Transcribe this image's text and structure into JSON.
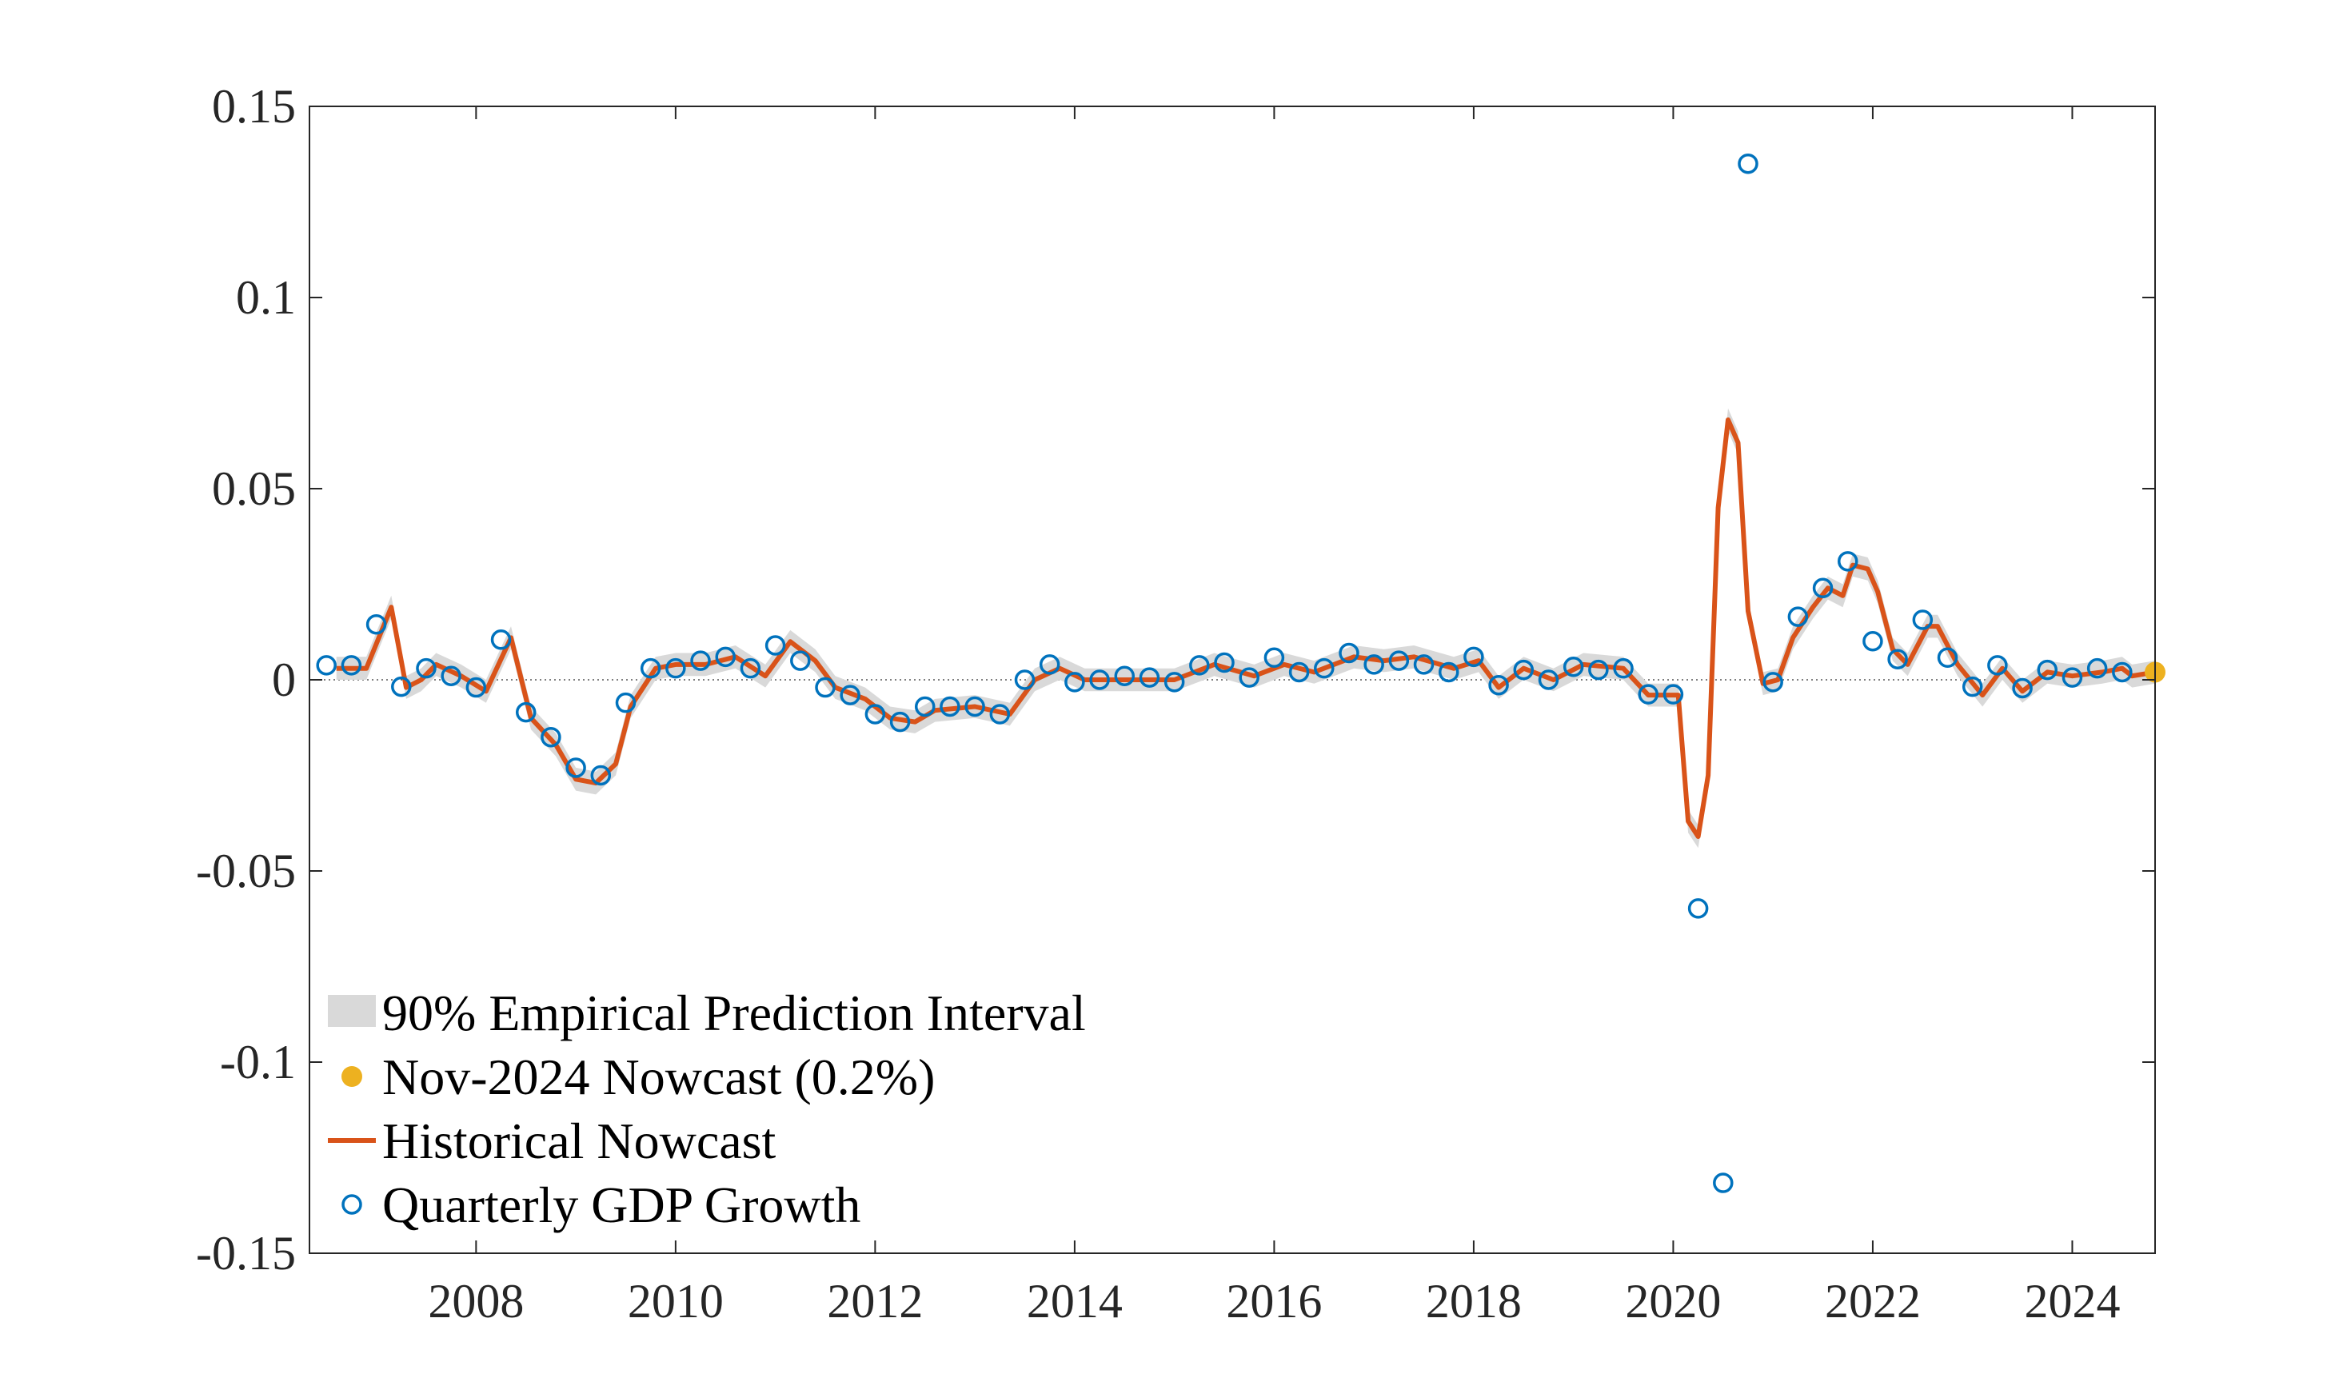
{
  "chart_data": {
    "type": "line",
    "xlim": [
      2006.33,
      2024.83
    ],
    "ylim": [
      -0.15,
      0.15
    ],
    "xticks": [
      2008,
      2010,
      2012,
      2014,
      2016,
      2018,
      2020,
      2022,
      2024
    ],
    "yticks": [
      -0.15,
      -0.1,
      -0.05,
      0,
      0.05,
      0.1,
      0.15
    ],
    "legend": "lower left",
    "series": [
      {
        "name": "90% Empirical Prediction Interval",
        "kind": "band",
        "color": "#d9d9d9",
        "x": [
          2006.6,
          2006.9,
          2007.15,
          2007.3,
          2007.45,
          2007.6,
          2007.85,
          2008.1,
          2008.35,
          2008.55,
          2008.8,
          2009.0,
          2009.2,
          2009.4,
          2009.55,
          2009.8,
          2010.0,
          2010.3,
          2010.6,
          2010.9,
          2011.15,
          2011.4,
          2011.6,
          2011.9,
          2012.15,
          2012.4,
          2012.6,
          2013.0,
          2013.35,
          2013.6,
          2013.85,
          2014.1,
          2014.5,
          2015.0,
          2015.4,
          2015.8,
          2016.1,
          2016.4,
          2016.8,
          2017.1,
          2017.4,
          2017.8,
          2018.05,
          2018.25,
          2018.5,
          2018.8,
          2019.1,
          2019.5,
          2019.75,
          2020.05,
          2020.15,
          2020.25,
          2020.35,
          2020.45,
          2020.55,
          2020.65,
          2020.75,
          2020.9,
          2021.05,
          2021.2,
          2021.4,
          2021.55,
          2021.7,
          2021.8,
          2021.95,
          2022.05,
          2022.2,
          2022.35,
          2022.55,
          2022.65,
          2022.85,
          2023.1,
          2023.3,
          2023.5,
          2023.75,
          2024.0,
          2024.3,
          2024.5,
          2024.6,
          2024.83
        ],
        "upper": [
          0.006,
          0.006,
          0.022,
          0.001,
          0.003,
          0.007,
          0.004,
          0,
          0.014,
          -0.007,
          -0.014,
          -0.023,
          -0.024,
          -0.019,
          -0.004,
          0.006,
          0.007,
          0.007,
          0.009,
          0.004,
          0.013,
          0.008,
          0.001,
          -0.002,
          -0.007,
          -0.008,
          -0.005,
          -0.004,
          -0.006,
          0.003,
          0.006,
          0.003,
          0.003,
          0.003,
          0.007,
          0.004,
          0.007,
          0.005,
          0.009,
          0.008,
          0.009,
          0.006,
          0.008,
          0.001,
          0.006,
          0.003,
          0.007,
          0.006,
          -0.001,
          -0.001,
          -0.034,
          -0.038,
          -0.022,
          0.048,
          0.071,
          0.065,
          0.021,
          0.002,
          0.003,
          0.014,
          0.022,
          0.027,
          0.025,
          0.033,
          0.032,
          0.026,
          0.011,
          0.007,
          0.017,
          0.017,
          0.007,
          -0.001,
          0.006,
          0,
          0.005,
          0.004,
          0.005,
          0.006,
          0.004,
          0.005
        ],
        "lower": [
          0,
          0,
          0.016,
          -0.005,
          -0.003,
          0.001,
          -0.002,
          -0.006,
          0.008,
          -0.013,
          -0.02,
          -0.029,
          -0.03,
          -0.025,
          -0.01,
          0,
          0.001,
          0.001,
          0.003,
          -0.002,
          0.007,
          0.002,
          -0.005,
          -0.008,
          -0.013,
          -0.014,
          -0.011,
          -0.01,
          -0.012,
          -0.003,
          0,
          -0.003,
          -0.003,
          -0.003,
          0.001,
          -0.002,
          0.001,
          -0.001,
          0.003,
          0.002,
          0.003,
          0,
          0.002,
          -0.005,
          0,
          -0.003,
          0.001,
          0,
          -0.007,
          -0.007,
          -0.04,
          -0.044,
          -0.028,
          0.042,
          0.065,
          0.059,
          0.015,
          -0.004,
          -0.003,
          0.008,
          0.016,
          0.021,
          0.019,
          0.027,
          0.026,
          0.02,
          0.005,
          0.001,
          0.011,
          0.011,
          0.001,
          -0.007,
          0,
          -0.006,
          -0.001,
          -0.002,
          -0.001,
          0,
          -0.002,
          -0.001
        ]
      },
      {
        "name": "Nov-2024 Nowcast (0.2%)",
        "kind": "point",
        "color": "#EDB120",
        "x": [
          2024.83
        ],
        "values": [
          0.002
        ]
      },
      {
        "name": "Historical Nowcast",
        "kind": "line",
        "color": "#D95319",
        "x": [
          2006.6,
          2006.9,
          2007.15,
          2007.3,
          2007.45,
          2007.6,
          2007.85,
          2008.1,
          2008.35,
          2008.55,
          2008.8,
          2009.0,
          2009.2,
          2009.4,
          2009.55,
          2009.8,
          2010.0,
          2010.3,
          2010.6,
          2010.9,
          2011.15,
          2011.4,
          2011.6,
          2011.9,
          2012.15,
          2012.4,
          2012.6,
          2013.0,
          2013.35,
          2013.6,
          2013.85,
          2014.1,
          2014.5,
          2015.0,
          2015.4,
          2015.8,
          2016.1,
          2016.4,
          2016.8,
          2017.1,
          2017.4,
          2017.8,
          2018.05,
          2018.25,
          2018.5,
          2018.8,
          2019.1,
          2019.5,
          2019.75,
          2020.05,
          2020.15,
          2020.25,
          2020.35,
          2020.45,
          2020.55,
          2020.65,
          2020.75,
          2020.9,
          2021.05,
          2021.2,
          2021.4,
          2021.55,
          2021.7,
          2021.8,
          2021.95,
          2022.05,
          2022.2,
          2022.35,
          2022.55,
          2022.65,
          2022.85,
          2023.1,
          2023.3,
          2023.5,
          2023.75,
          2024.0,
          2024.3,
          2024.5,
          2024.6,
          2024.83
        ],
        "values": [
          0.003,
          0.003,
          0.019,
          -0.002,
          0.0,
          0.004,
          0.001,
          -0.003,
          0.011,
          -0.01,
          -0.017,
          -0.026,
          -0.027,
          -0.022,
          -0.007,
          0.003,
          0.004,
          0.004,
          0.006,
          0.001,
          0.01,
          0.005,
          -0.002,
          -0.005,
          -0.01,
          -0.011,
          -0.008,
          -0.007,
          -0.009,
          0.0,
          0.003,
          0.0,
          0.0,
          0.0,
          0.004,
          0.001,
          0.004,
          0.002,
          0.006,
          0.005,
          0.006,
          0.003,
          0.005,
          -0.002,
          0.003,
          0.0,
          0.004,
          0.003,
          -0.004,
          -0.004,
          -0.037,
          -0.041,
          -0.025,
          0.045,
          0.068,
          0.062,
          0.018,
          -0.001,
          0.0,
          0.011,
          0.019,
          0.024,
          0.022,
          0.03,
          0.029,
          0.023,
          0.008,
          0.004,
          0.014,
          0.014,
          0.004,
          -0.004,
          0.003,
          -0.003,
          0.002,
          0.001,
          0.002,
          0.003,
          0.001,
          0.002
        ]
      },
      {
        "name": "Quarterly GDP Growth",
        "kind": "scatter",
        "color": "#0072BD",
        "x": [
          2006.5,
          2006.75,
          2007.0,
          2007.25,
          2007.5,
          2007.75,
          2008.0,
          2008.25,
          2008.5,
          2008.75,
          2009.0,
          2009.25,
          2009.5,
          2009.75,
          2010.0,
          2010.25,
          2010.5,
          2010.75,
          2011.0,
          2011.25,
          2011.5,
          2011.75,
          2012.0,
          2012.25,
          2012.5,
          2012.75,
          2013.0,
          2013.25,
          2013.5,
          2013.75,
          2014.0,
          2014.25,
          2014.5,
          2014.75,
          2015.0,
          2015.25,
          2015.5,
          2015.75,
          2016.0,
          2016.25,
          2016.5,
          2016.75,
          2017.0,
          2017.25,
          2017.5,
          2017.75,
          2018.0,
          2018.25,
          2018.5,
          2018.75,
          2019.0,
          2019.25,
          2019.5,
          2019.75,
          2020.0,
          2020.25,
          2020.5,
          2020.75,
          2021.0,
          2021.25,
          2021.5,
          2021.75,
          2022.0,
          2022.25,
          2022.5,
          2022.75,
          2023.0,
          2023.25,
          2023.5,
          2023.75,
          2024.0,
          2024.25,
          2024.5
        ],
        "values": [
          0.0038,
          0.0038,
          0.0145,
          -0.0018,
          0.003,
          0.001,
          -0.002,
          0.0105,
          -0.0085,
          -0.015,
          -0.023,
          -0.025,
          -0.006,
          0.003,
          0.003,
          0.005,
          0.006,
          0.003,
          0.009,
          0.005,
          -0.002,
          -0.004,
          -0.009,
          -0.011,
          -0.007,
          -0.007,
          -0.007,
          -0.009,
          0.0,
          0.004,
          -0.0006,
          0.0,
          0.001,
          0.0006,
          -0.0006,
          0.0038,
          0.0045,
          0.0006,
          0.0058,
          0.002,
          0.003,
          0.007,
          0.004,
          0.005,
          0.004,
          0.002,
          0.006,
          -0.0014,
          0.0026,
          0.0,
          0.0034,
          0.0026,
          0.003,
          -0.0038,
          -0.0038,
          -0.0598,
          -0.1316,
          0.135,
          -0.0006,
          0.0165,
          0.024,
          0.031,
          0.0101,
          0.0054,
          0.0157,
          0.0058,
          -0.0018,
          0.0038,
          -0.0022,
          0.0026,
          0.0006,
          0.003,
          0.002
        ]
      }
    ]
  }
}
